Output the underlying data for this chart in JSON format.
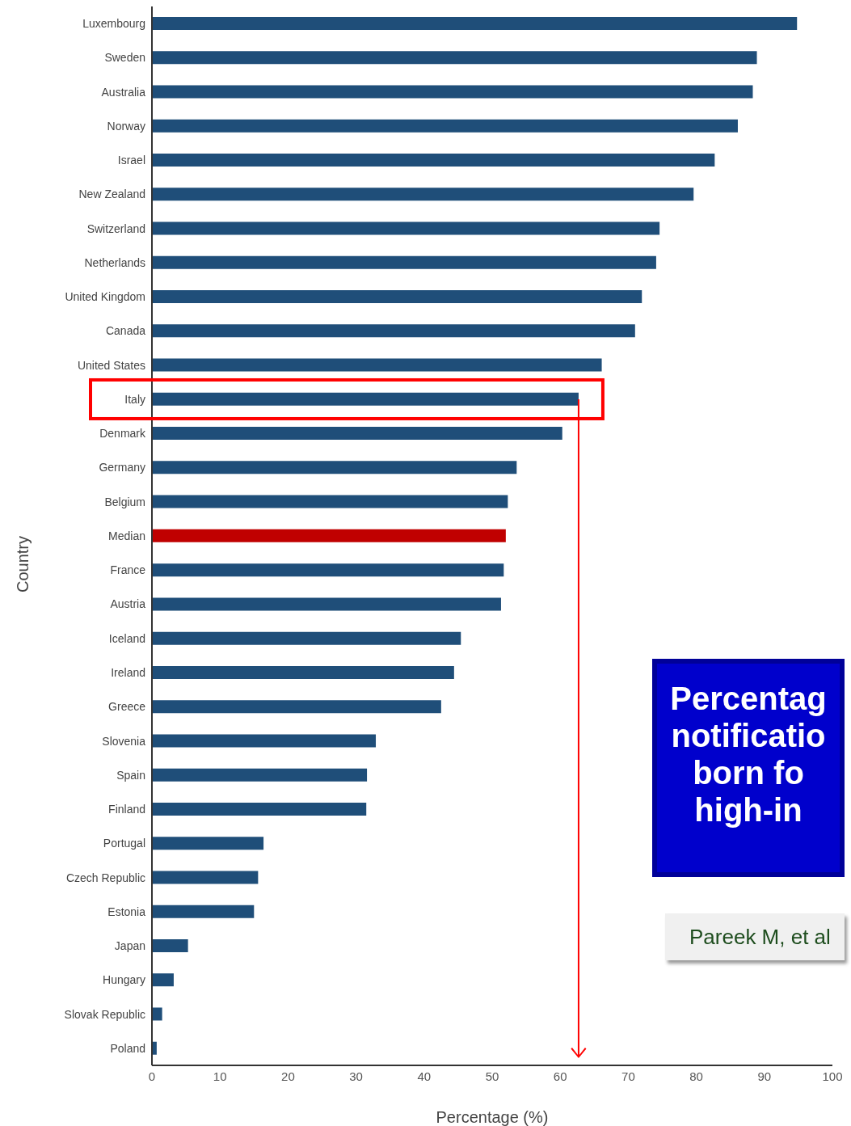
{
  "chart_data": {
    "type": "bar",
    "orientation": "horizontal",
    "xlabel": "Percentage (%)",
    "ylabel": "Country",
    "categories": [
      "Luxembourg",
      "Sweden",
      "Australia",
      "Norway",
      "Israel",
      "New Zealand",
      "Switzerland",
      "Netherlands",
      "United Kingdom",
      "Canada",
      "United States",
      "Italy",
      "Denmark",
      "Germany",
      "Belgium",
      "Median",
      "France",
      "Austria",
      "Iceland",
      "Ireland",
      "Greece",
      "Slovenia",
      "Spain",
      "Finland",
      "Portugal",
      "Czech Republic",
      "Estonia",
      "Japan",
      "Hungary",
      "Slovak Republic",
      "Poland"
    ],
    "values": [
      94.8,
      88.9,
      88.3,
      86.1,
      82.7,
      79.6,
      74.6,
      74.1,
      72.0,
      71.0,
      66.1,
      62.7,
      60.3,
      53.6,
      52.3,
      52.0,
      51.7,
      51.3,
      45.4,
      44.4,
      42.5,
      32.9,
      31.6,
      31.5,
      16.4,
      15.6,
      15.0,
      5.3,
      3.2,
      1.5,
      0.7
    ],
    "colors": [
      "#1f4e79",
      "#1f4e79",
      "#1f4e79",
      "#1f4e79",
      "#1f4e79",
      "#1f4e79",
      "#1f4e79",
      "#1f4e79",
      "#1f4e79",
      "#1f4e79",
      "#1f4e79",
      "#1f4e79",
      "#1f4e79",
      "#1f4e79",
      "#1f4e79",
      "#c00000",
      "#1f4e79",
      "#1f4e79",
      "#1f4e79",
      "#1f4e79",
      "#1f4e79",
      "#1f4e79",
      "#1f4e79",
      "#1f4e79",
      "#1f4e79",
      "#1f4e79",
      "#1f4e79",
      "#1f4e79",
      "#1f4e79",
      "#1f4e79",
      "#1f4e79"
    ],
    "xlim": [
      0,
      100
    ],
    "xticks": [
      0,
      10,
      20,
      30,
      40,
      50,
      60,
      70,
      80,
      90,
      100
    ],
    "grid": false,
    "legend": false,
    "annotations": [
      "Percentag\nnotificatio\nborn fo\nhigh-in",
      "Pareek M, et al"
    ]
  }
}
